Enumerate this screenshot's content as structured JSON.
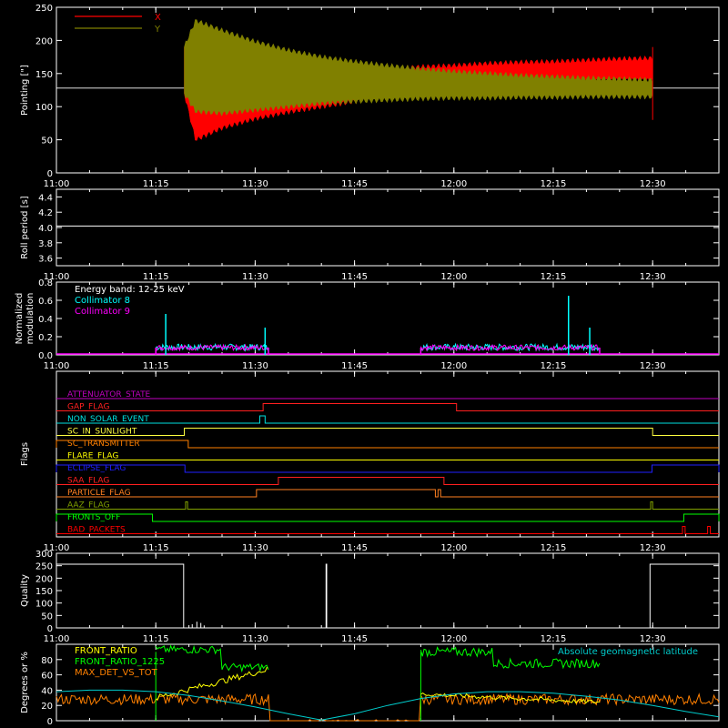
{
  "colors": {
    "bg": "#000000",
    "axis": "#ffffff",
    "x_series": "#ff0000",
    "y_series": "#808000",
    "coll8": "#00ffff",
    "coll9": "#ff00ff",
    "front_ratio": "#ffff00",
    "front_ratio_1225": "#00ff00",
    "max_det": "#ff8000",
    "geomag": "#00cccc"
  },
  "time_axis": {
    "start_min": 0,
    "end_min": 100,
    "tick_minutes": [
      0,
      15,
      30,
      45,
      60,
      75,
      90
    ],
    "tick_labels": [
      "11:00",
      "11:15",
      "11:30",
      "11:45",
      "12:00",
      "12:15",
      "12:30"
    ]
  },
  "chart_data": [
    {
      "id": "pointing",
      "type": "area",
      "ylabel": "Pointing [\"]",
      "ylim": [
        0,
        250
      ],
      "yticks": [
        0,
        50,
        100,
        150,
        200,
        250
      ],
      "show_time_labels": true,
      "legend": [
        "X",
        "Y"
      ],
      "reference_line_y": 128,
      "data_window_min": [
        19.3,
        90
      ],
      "series": [
        {
          "name": "X",
          "color_key": "x_series",
          "x": [
            19.3,
            21,
            25,
            30,
            35,
            40,
            45,
            50,
            55,
            60,
            65,
            70,
            75,
            80,
            85,
            90
          ],
          "upper": [
            190,
            135,
            140,
            143,
            147,
            150,
            154,
            157,
            160,
            162,
            165,
            167,
            168,
            170,
            172,
            173
          ],
          "lower": [
            120,
            50,
            68,
            82,
            92,
            100,
            108,
            114,
            120,
            125,
            130,
            133,
            136,
            138,
            140,
            140
          ]
        },
        {
          "name": "Y",
          "color_key": "y_series",
          "x": [
            19.3,
            21,
            25,
            30,
            35,
            40,
            45,
            50,
            55,
            60,
            65,
            70,
            75,
            80,
            85,
            90
          ],
          "upper": [
            190,
            230,
            215,
            198,
            185,
            175,
            168,
            162,
            157,
            153,
            150,
            147,
            145,
            143,
            142,
            140
          ],
          "lower": [
            120,
            93,
            90,
            95,
            100,
            105,
            108,
            110,
            112,
            113,
            113,
            114,
            114,
            115,
            115,
            115
          ]
        }
      ]
    },
    {
      "id": "roll",
      "type": "line",
      "ylabel": "Roll period [s]",
      "ylim": [
        3.5,
        4.5
      ],
      "yticks": [
        3.6,
        3.8,
        4.0,
        4.2,
        4.4
      ],
      "ytick_labels": [
        "3.6",
        "3.8",
        "4.0",
        "4.2",
        "4.4"
      ],
      "show_time_labels": true,
      "series": [
        {
          "name": "",
          "x": [
            0,
            100
          ],
          "y": [
            4.02,
            4.02
          ]
        }
      ]
    },
    {
      "id": "modulation",
      "type": "line",
      "ylabel": "Normalized modulation",
      "ylabel_lines": [
        "Normalized",
        "modulation"
      ],
      "ylim": [
        0,
        0.8
      ],
      "yticks": [
        0,
        0.2,
        0.4,
        0.6,
        0.8
      ],
      "ytick_labels": [
        "0.0",
        "0.2",
        "0.4",
        "0.6",
        "0.8"
      ],
      "show_time_labels": true,
      "annotation": "Energy band: 12-25 keV",
      "legend": [
        "Collimator 8",
        "Collimator 9"
      ],
      "windows_min": [
        [
          15,
          32
        ],
        [
          55,
          82
        ]
      ],
      "spikes": [
        {
          "series": "Collimator 8",
          "x": 16.5,
          "y": 0.45
        },
        {
          "series": "Collimator 8",
          "x": 31.5,
          "y": 0.3
        },
        {
          "series": "Collimator 8",
          "x": 77.3,
          "y": 0.65
        },
        {
          "series": "Collimator 8",
          "x": 80.5,
          "y": 0.3
        }
      ]
    },
    {
      "id": "flags",
      "type": "table",
      "ylabel": "Flags",
      "show_time_labels": true,
      "flags": [
        {
          "name": "ATTENUATOR_STATE",
          "color": "#c000c0",
          "segments": []
        },
        {
          "name": "GAP_FLAG",
          "color": "#ff2020",
          "segments": [
            [
              31.2,
              60.4
            ]
          ]
        },
        {
          "name": "NON_SOLAR_EVENT",
          "color": "#00e0e0",
          "segments": [
            [
              30.7,
              31.5
            ]
          ]
        },
        {
          "name": "SC_IN_SUNLIGHT",
          "color": "#ffff40",
          "segments": [
            [
              19.3,
              90
            ]
          ]
        },
        {
          "name": "SC_TRANSMITTER",
          "color": "#ff8000",
          "segments": [
            [
              -1,
              19.9
            ]
          ]
        },
        {
          "name": "FLARE_FLAG",
          "color": "#ffff00",
          "segments": []
        },
        {
          "name": "ECLIPSE_FLAG",
          "color": "#2020ff",
          "segments": [
            [
              -1,
              19.4
            ],
            [
              89.9,
              101
            ]
          ]
        },
        {
          "name": "SAA_FLAG",
          "color": "#ff2020",
          "segments": [
            [
              33.5,
              58.5
            ]
          ]
        },
        {
          "name": "PARTICLE_FLAG",
          "color": "#ff8020",
          "segments": [
            [
              30.2,
              57.2
            ],
            [
              57.6,
              58.0
            ]
          ]
        },
        {
          "name": "AAZ_FLAG",
          "color": "#80a000",
          "segments": [
            [
              19.5,
              19.8
            ],
            [
              89.7,
              90.0
            ]
          ]
        },
        {
          "name": "FRONTS_OFF",
          "color": "#00ff00",
          "segments": [
            [
              -1,
              14.5
            ],
            [
              94.7,
              101
            ]
          ]
        },
        {
          "name": "BAD_PACKETS",
          "color": "#ff0000",
          "segments": [
            [
              94.5,
              94.9
            ],
            [
              98.3,
              98.7
            ]
          ]
        }
      ]
    },
    {
      "id": "quality",
      "type": "line",
      "ylabel": "Quality",
      "ylim": [
        0,
        300
      ],
      "yticks": [
        0,
        50,
        100,
        150,
        200,
        250,
        300
      ],
      "show_time_labels": true,
      "series": [
        {
          "name": "",
          "x": [
            0,
            19.2,
            19.2,
            19.3,
            40.7,
            40.7,
            40.8,
            40.8,
            89.6,
            89.6,
            100
          ],
          "y": [
            256,
            256,
            0,
            0,
            0,
            256,
            256,
            0,
            0,
            256,
            256
          ]
        }
      ]
    },
    {
      "id": "front",
      "type": "line",
      "ylabel": "Degrees or %",
      "ylim": [
        0,
        100
      ],
      "yticks": [
        0,
        20,
        40,
        60,
        80
      ],
      "show_time_labels": false,
      "legend": [
        "FRONT_RATIO",
        "FRONT_RATIO_1225",
        "MAX_DET_VS_TOT"
      ],
      "annotation": "Absolute geomagnetic latitude",
      "geomag": {
        "x": [
          0,
          5,
          10,
          15,
          20,
          25,
          30,
          35,
          40,
          45,
          50,
          55,
          60,
          65,
          70,
          75,
          80,
          85,
          90,
          95,
          100
        ],
        "y": [
          38,
          40,
          40,
          38,
          33,
          26,
          18,
          9,
          1,
          9,
          20,
          29,
          35,
          38,
          38,
          36,
          32,
          27,
          20,
          12,
          5
        ]
      }
    }
  ]
}
